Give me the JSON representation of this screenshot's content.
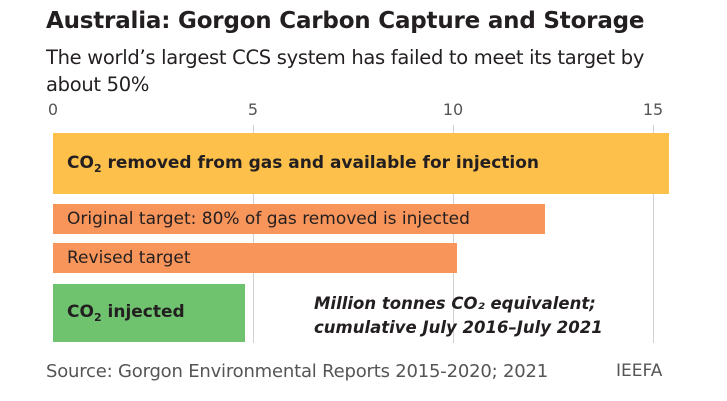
{
  "title": "Australia: Gorgon Carbon Capture and Storage",
  "subtitle": "The world’s largest CCS system has failed to meet its target by about 50%",
  "chart_data": {
    "type": "bar",
    "orientation": "horizontal",
    "xlim": [
      0,
      15.5
    ],
    "ticks": [
      "0",
      "5",
      "10",
      "15"
    ],
    "grid": true,
    "categories": [
      "CO₂ removed from gas and available for injection",
      "Original target: 80% of gas removed is injected",
      "Revised target",
      "CO₂ injected"
    ],
    "values": [
      15.4,
      12.3,
      10.1,
      4.8
    ],
    "colors": [
      "#fdc04b",
      "#f7955a",
      "#f7955a",
      "#6fc36f"
    ],
    "annotation": [
      "Million tonnes CO₂ equivalent;",
      "cumulative July 2016–July 2021"
    ]
  },
  "source": "Source: Gorgon Environmental Reports 2015-2020; 2021",
  "brand": "IEEFA"
}
